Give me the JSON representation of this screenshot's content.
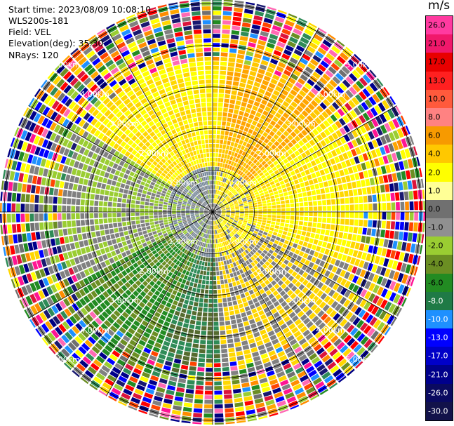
{
  "info": {
    "start_time": "Start time: 2023/08/09 10:08:10",
    "station": "WLS200s-181",
    "field": "Field: VEL",
    "elevation": "Elevation(deg): 35.30",
    "nrays": "NRays: 120"
  },
  "colorbar": {
    "unit": "m/s",
    "labels": [
      "26.0",
      "21.0",
      "17.0",
      "13.0",
      "10.0",
      "8.0",
      "6.0",
      "4.0",
      "2.0",
      "1.0",
      "0.0",
      "-1.0",
      "-2.0",
      "-4.0",
      "-6.0",
      "-8.0",
      "-10.0",
      "-13.0",
      "-17.0",
      "-21.0",
      "-26.0",
      "-30.0"
    ],
    "colors": [
      "#ff3aa0",
      "#f0186b",
      "#e80000",
      "#ff2020",
      "#ff5a3c",
      "#ff8282",
      "#f79a00",
      "#ffc800",
      "#ffff00",
      "#ffff96",
      "#707070",
      "#909090",
      "#9acd32",
      "#6b8e23",
      "#228b22",
      "#1f7a46",
      "#1e90ff",
      "#0000ff",
      "#0000c8",
      "#00008b",
      "#0a0a60",
      "#12124a"
    ]
  },
  "range_labels": {
    "r1": "1.00km",
    "r2": "2.00km",
    "r3": "3.00km",
    "r4": "4.00km",
    "r5": "5.00km"
  }
}
